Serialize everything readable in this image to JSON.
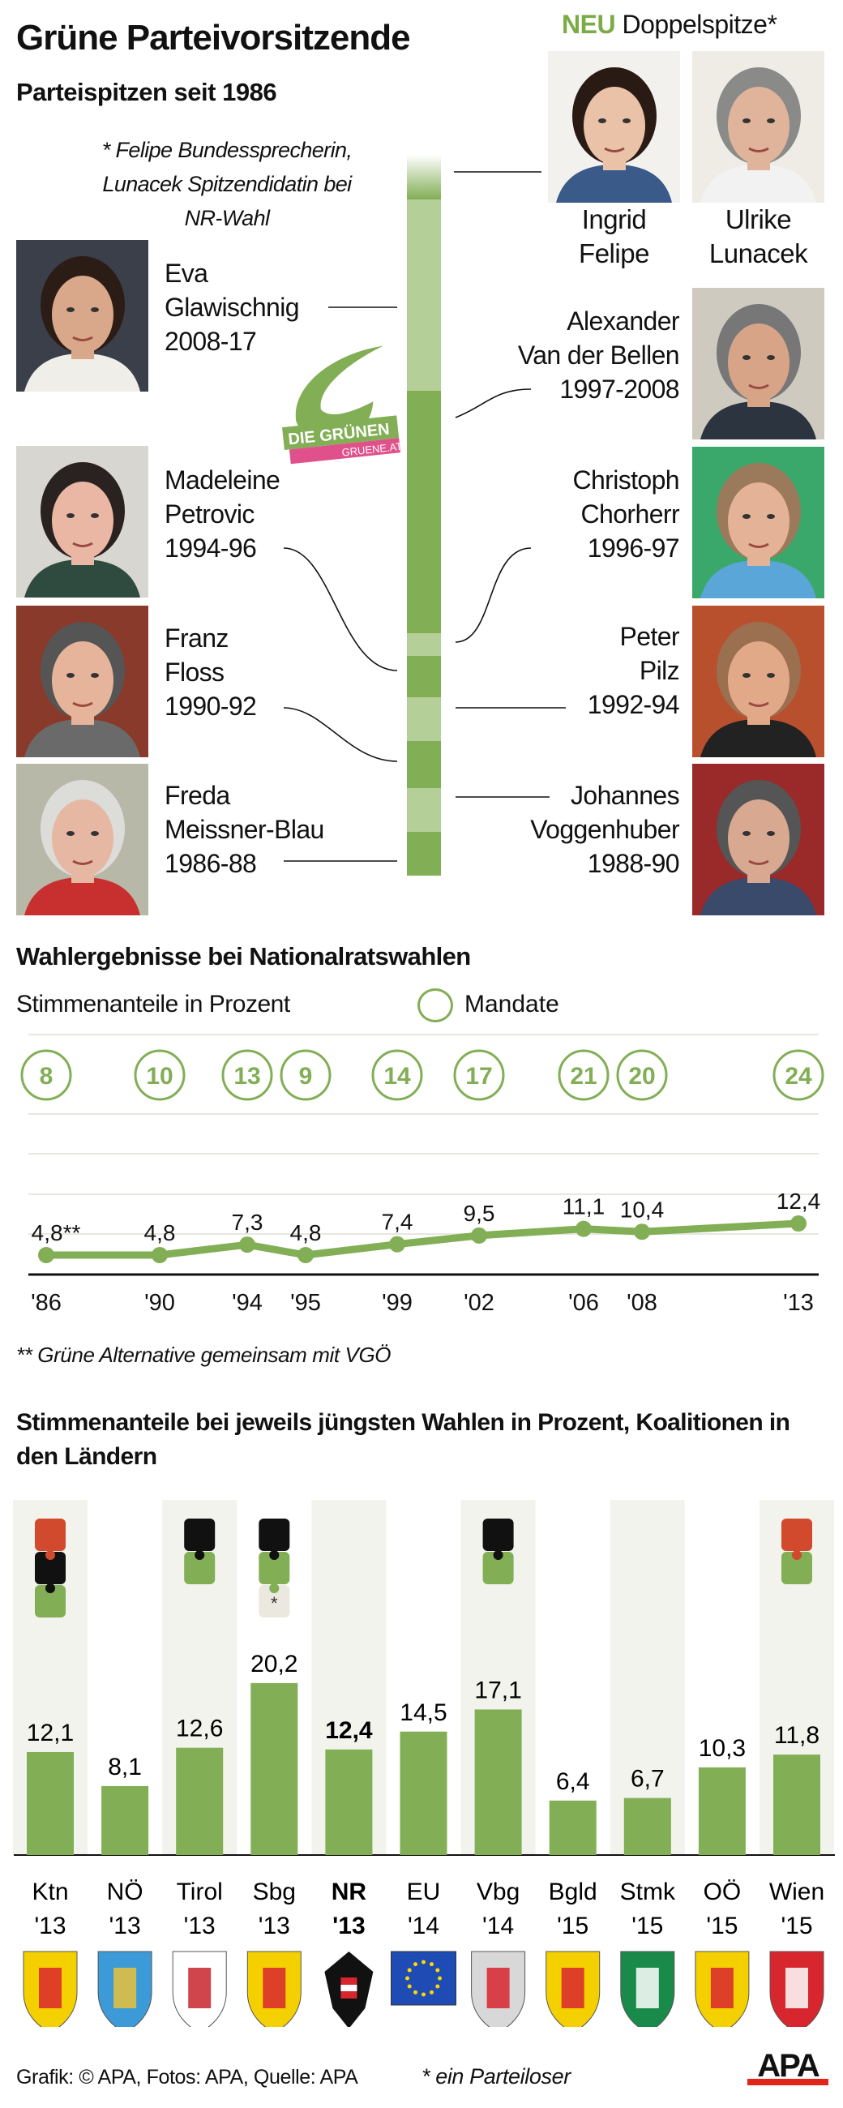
{
  "header": {
    "title": "Grüne Parteivorsitzende",
    "subtitle": "Parteispitzen seit 1986",
    "new_label": "NEU",
    "new_rest": "Doppelspitze*",
    "footnote_lines": [
      "* Felipe Bundessprecherin,",
      "Lunacek Spitzendidatin bei",
      "NR-Wahl"
    ]
  },
  "new_leaders": [
    {
      "first": "Ingrid",
      "last": "Felipe"
    },
    {
      "first": "Ulrike",
      "last": "Lunacek"
    }
  ],
  "leaders": [
    {
      "first": "Eva",
      "last": "Glawischnig",
      "years": "2008-17"
    },
    {
      "first": "Alexander",
      "last": "Van der Bellen",
      "years": "1997-2008"
    },
    {
      "first": "Madeleine",
      "last": "Petrovic",
      "years": "1994-96"
    },
    {
      "first": "Christoph",
      "last": "Chorherr",
      "years": "1996-97"
    },
    {
      "first": "Franz",
      "last": "Floss",
      "years": "1990-92"
    },
    {
      "first": "Peter",
      "last": "Pilz",
      "years": "1992-94"
    },
    {
      "first": "Freda",
      "last": "Meissner-Blau",
      "years": "1986-88"
    },
    {
      "first": "Johannes",
      "last": "Voggenhuber",
      "years": "1988-90"
    }
  ],
  "logo": {
    "text": "DIE GRÜNEN",
    "url_text": "GRUENE.AT"
  },
  "colors": {
    "green": "#82ae55",
    "light_green": "#b5cf98",
    "red": "#d24a2d",
    "black": "#111111",
    "neutral": "#ebe8df",
    "column_bg": "#f2f3ec",
    "logo_pink": "#e0518c"
  },
  "chart_data": [
    {
      "type": "line",
      "title": "Wahlergebnisse bei Nationalratswahlen",
      "ylabel": "Stimmenanteile in Prozent",
      "legend": "Mandate",
      "x": [
        "'86",
        "'90",
        "'94",
        "'95",
        "'99",
        "'02",
        "'06",
        "'08",
        "'13"
      ],
      "values": [
        4.8,
        4.8,
        7.3,
        4.8,
        7.4,
        9.5,
        11.1,
        10.4,
        12.4
      ],
      "value_labels": [
        "4,8**",
        "4,8",
        "7,3",
        "4,8",
        "7,4",
        "9,5",
        "11,1",
        "10,4",
        "12,4"
      ],
      "mandates": [
        8,
        10,
        13,
        9,
        14,
        17,
        21,
        20,
        24
      ],
      "footnote": "** Grüne Alternative gemeinsam mit VGÖ",
      "grid": true
    },
    {
      "type": "bar",
      "title": "Stimmenanteile bei jeweils jüngsten Wahlen in Prozent, Koalitionen in den Ländern",
      "categories": [
        "Ktn",
        "NÖ",
        "Tirol",
        "Sbg",
        "NR",
        "EU",
        "Vbg",
        "Bgld",
        "Stmk",
        "OÖ",
        "Wien"
      ],
      "years": [
        "'13",
        "'13",
        "'13",
        "'13",
        "'13",
        "'14",
        "'14",
        "'15",
        "'15",
        "'15",
        "'15"
      ],
      "values": [
        12.1,
        8.1,
        12.6,
        20.2,
        12.4,
        14.5,
        17.1,
        6.4,
        6.7,
        10.3,
        11.8
      ],
      "value_labels": [
        "12,1",
        "8,1",
        "12,6",
        "20,2",
        "12,4",
        "14,5",
        "17,1",
        "6,4",
        "6,7",
        "10,3",
        "11,8"
      ],
      "highlight": "NR",
      "coalitions": [
        [
          "red",
          "black",
          "green"
        ],
        [],
        [
          "black",
          "green"
        ],
        [
          "black",
          "green",
          "neutral"
        ],
        [],
        [],
        [
          "black",
          "green"
        ],
        [],
        [],
        [],
        [
          "red",
          "green"
        ]
      ],
      "coalition_note_mark": "*",
      "arms": [
        {
          "name": "Kärnten-arms-icon",
          "c1": "#f4d000",
          "c2": "#d8262e"
        },
        {
          "name": "Niederösterreich-arms-icon",
          "c1": "#3c9ad8",
          "c2": "#e8c13a"
        },
        {
          "name": "Tirol-arms-icon",
          "c1": "#ffffff",
          "c2": "#c8232c"
        },
        {
          "name": "Salzburg-arms-icon",
          "c1": "#f4d000",
          "c2": "#d8262e"
        },
        {
          "name": "Österreich-eagle-icon",
          "c1": "#ffffff",
          "c2": "#111111"
        },
        {
          "name": "EU-flag-icon",
          "c1": "#1f4bb5",
          "c2": "#ffd700"
        },
        {
          "name": "Vorarlberg-arms-icon",
          "c1": "#d8d8d8",
          "c2": "#d8262e"
        },
        {
          "name": "Burgenland-arms-icon",
          "c1": "#f4d000",
          "c2": "#d8262e"
        },
        {
          "name": "Steiermark-arms-icon",
          "c1": "#1a8a4a",
          "c2": "#ffffff"
        },
        {
          "name": "Oberösterreich-arms-icon",
          "c1": "#f4d000",
          "c2": "#d8262e"
        },
        {
          "name": "Wien-arms-icon",
          "c1": "#d8262e",
          "c2": "#ffffff"
        }
      ],
      "note": "* ein Parteiloser"
    }
  ],
  "footer": {
    "credits": "Grafik: © APA, Fotos: APA, Quelle: APA",
    "brand": "APA"
  }
}
